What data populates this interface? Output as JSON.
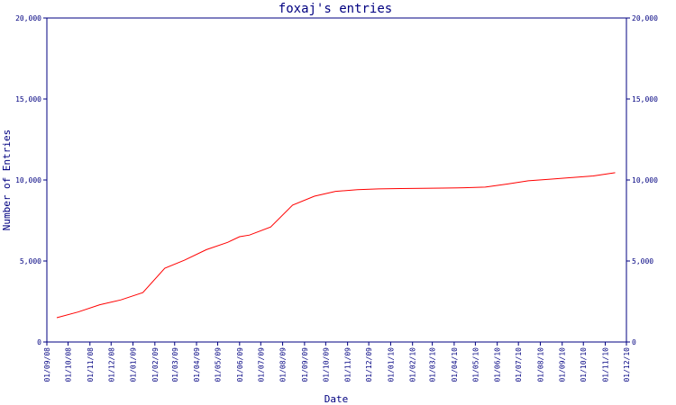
{
  "chart_data": {
    "type": "line",
    "title": "foxaj's entries",
    "xlabel": "Date",
    "ylabel": "Number of Entries",
    "ylim": [
      0,
      20000
    ],
    "yticks": [
      0,
      5000,
      10000,
      15000,
      20000
    ],
    "ytick_labels": [
      "0",
      "5,000",
      "10,000",
      "15,000",
      "20,000"
    ],
    "xlim": [
      "2008-09-01",
      "2010-12-01"
    ],
    "xtick_labels": [
      "01/09/08",
      "01/10/08",
      "01/11/08",
      "01/12/08",
      "01/01/09",
      "01/02/09",
      "01/03/09",
      "01/04/09",
      "01/05/09",
      "01/06/09",
      "01/07/09",
      "01/08/09",
      "01/09/09",
      "01/10/09",
      "01/11/09",
      "01/12/09",
      "01/01/10",
      "01/02/10",
      "01/03/10",
      "01/04/10",
      "01/05/10",
      "01/06/10",
      "01/07/10",
      "01/08/10",
      "01/09/10",
      "01/10/10",
      "01/11/10",
      "01/12/10"
    ],
    "grid": false,
    "line_color": "#ff0000",
    "axis_color": "#000080",
    "series": [
      {
        "values": [
          {
            "x": "2008-09-15",
            "y": 1500
          },
          {
            "x": "2008-10-15",
            "y": 1850
          },
          {
            "x": "2008-11-15",
            "y": 2300
          },
          {
            "x": "2008-12-15",
            "y": 2600
          },
          {
            "x": "2009-01-15",
            "y": 3050
          },
          {
            "x": "2009-02-15",
            "y": 4550
          },
          {
            "x": "2009-03-15",
            "y": 5050
          },
          {
            "x": "2009-04-15",
            "y": 5700
          },
          {
            "x": "2009-05-15",
            "y": 6150
          },
          {
            "x": "2009-06-01",
            "y": 6500
          },
          {
            "x": "2009-06-15",
            "y": 6600
          },
          {
            "x": "2009-07-15",
            "y": 7100
          },
          {
            "x": "2009-08-15",
            "y": 8450
          },
          {
            "x": "2009-09-15",
            "y": 9000
          },
          {
            "x": "2009-10-15",
            "y": 9300
          },
          {
            "x": "2009-11-15",
            "y": 9400
          },
          {
            "x": "2009-12-15",
            "y": 9450
          },
          {
            "x": "2010-01-15",
            "y": 9470
          },
          {
            "x": "2010-02-15",
            "y": 9490
          },
          {
            "x": "2010-03-15",
            "y": 9500
          },
          {
            "x": "2010-04-15",
            "y": 9520
          },
          {
            "x": "2010-05-15",
            "y": 9560
          },
          {
            "x": "2010-06-15",
            "y": 9750
          },
          {
            "x": "2010-07-15",
            "y": 9950
          },
          {
            "x": "2010-08-15",
            "y": 10050
          },
          {
            "x": "2010-09-15",
            "y": 10150
          },
          {
            "x": "2010-10-15",
            "y": 10250
          },
          {
            "x": "2010-11-15",
            "y": 10450
          }
        ]
      }
    ]
  }
}
